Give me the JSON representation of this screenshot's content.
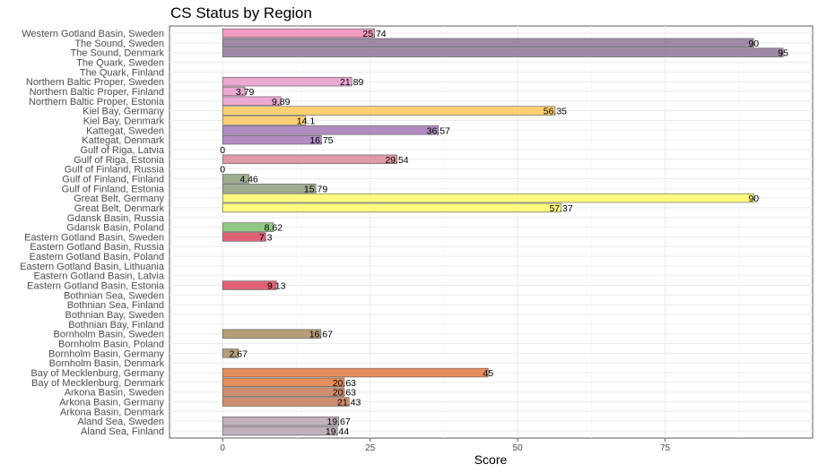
{
  "chart_data": {
    "type": "bar",
    "orientation": "horizontal",
    "title": "CS Status by Region",
    "xlabel": "Score",
    "ylabel": "",
    "xlim": [
      -9,
      100
    ],
    "xticks": [
      0,
      25,
      50,
      75
    ],
    "grid": true,
    "legend": "none",
    "categories": [
      {
        "name": "Western Gotland Basin, Sweden",
        "value": 25.74,
        "label": "25.74",
        "color": "#f08bb4"
      },
      {
        "name": "The Sound, Sweden",
        "value": 90,
        "label": "90",
        "color": "#8e7596"
      },
      {
        "name": "The Sound, Denmark",
        "value": 95,
        "label": "95",
        "color": "#8e7596"
      },
      {
        "name": "The Quark, Sweden",
        "value": null,
        "label": "",
        "color": "#cccccc"
      },
      {
        "name": "The Quark, Finland",
        "value": null,
        "label": "",
        "color": "#cccccc"
      },
      {
        "name": "Northern Baltic Proper, Sweden",
        "value": 21.89,
        "label": "21.89",
        "color": "#e89acb"
      },
      {
        "name": "Northern Baltic Proper, Finland",
        "value": 3.79,
        "label": "3.79",
        "color": "#e89acb"
      },
      {
        "name": "Northern Baltic Proper, Estonia",
        "value": 9.89,
        "label": "9.89",
        "color": "#e89acb"
      },
      {
        "name": "Kiel Bay, Germany",
        "value": 56.35,
        "label": "56.35",
        "color": "#fdc95a"
      },
      {
        "name": "Kiel Bay, Denmark",
        "value": 14.1,
        "label": "14.1",
        "color": "#fdc95a"
      },
      {
        "name": "Kattegat, Sweden",
        "value": 36.57,
        "label": "36.57",
        "color": "#a478b9"
      },
      {
        "name": "Kattegat, Denmark",
        "value": 16.75,
        "label": "16.75",
        "color": "#a478b9"
      },
      {
        "name": "Gulf of Riga, Latvia",
        "value": 0,
        "label": "0",
        "color": "#d98898"
      },
      {
        "name": "Gulf of Riga, Estonia",
        "value": 29.54,
        "label": "29.54",
        "color": "#d98898"
      },
      {
        "name": "Gulf of Finland, Russia",
        "value": 0,
        "label": "0",
        "color": "#8d9f7a"
      },
      {
        "name": "Gulf of Finland, Finland",
        "value": 4.46,
        "label": "4.46",
        "color": "#8d9f7a"
      },
      {
        "name": "Gulf of Finland, Estonia",
        "value": 15.79,
        "label": "15.79",
        "color": "#8d9f7a"
      },
      {
        "name": "Great Belt, Germany",
        "value": 90,
        "label": "90",
        "color": "#fffa6a"
      },
      {
        "name": "Great Belt, Denmark",
        "value": 57.37,
        "label": "57.37",
        "color": "#fffa6a"
      },
      {
        "name": "Gdansk Basin, Russia",
        "value": null,
        "label": "",
        "color": "#cccccc"
      },
      {
        "name": "Gdansk Basin, Poland",
        "value": 8.62,
        "label": "8.62",
        "color": "#7fc06e"
      },
      {
        "name": "Eastern Gotland Basin, Sweden",
        "value": 7.3,
        "label": "7.3",
        "color": "#d9475f"
      },
      {
        "name": "Eastern Gotland Basin, Russia",
        "value": null,
        "label": "",
        "color": "#cccccc"
      },
      {
        "name": "Eastern Gotland Basin, Poland",
        "value": null,
        "label": "",
        "color": "#cccccc"
      },
      {
        "name": "Eastern Gotland Basin, Lithuania",
        "value": null,
        "label": "",
        "color": "#cccccc"
      },
      {
        "name": "Eastern Gotland Basin, Latvia",
        "value": null,
        "label": "",
        "color": "#cccccc"
      },
      {
        "name": "Eastern Gotland Basin, Estonia",
        "value": 9.13,
        "label": "9.13",
        "color": "#d9475f"
      },
      {
        "name": "Bothnian Sea, Sweden",
        "value": null,
        "label": "",
        "color": "#cccccc"
      },
      {
        "name": "Bothnian Sea, Finland",
        "value": null,
        "label": "",
        "color": "#cccccc"
      },
      {
        "name": "Bothnian Bay, Sweden",
        "value": null,
        "label": "",
        "color": "#cccccc"
      },
      {
        "name": "Bothnian Bay, Finland",
        "value": null,
        "label": "",
        "color": "#cccccc"
      },
      {
        "name": "Bornholm Basin, Sweden",
        "value": 16.67,
        "label": "16.67",
        "color": "#a88e62"
      },
      {
        "name": "Bornholm Basin, Poland",
        "value": null,
        "label": "",
        "color": "#cccccc"
      },
      {
        "name": "Bornholm Basin, Germany",
        "value": 2.67,
        "label": "2.67",
        "color": "#a88e62"
      },
      {
        "name": "Bornholm Basin, Denmark",
        "value": null,
        "label": "",
        "color": "#cccccc"
      },
      {
        "name": "Bay of Mecklenburg, Germany",
        "value": 45,
        "label": "45",
        "color": "#e07a42"
      },
      {
        "name": "Bay of Mecklenburg, Denmark",
        "value": 20.63,
        "label": "20.63",
        "color": "#e07a42"
      },
      {
        "name": "Arkona Basin, Sweden",
        "value": 20.63,
        "label": "20.63",
        "color": "#c47a56"
      },
      {
        "name": "Arkona Basin, Germany",
        "value": 21.43,
        "label": "21.43",
        "color": "#c47a56"
      },
      {
        "name": "Arkona Basin, Denmark",
        "value": null,
        "label": "",
        "color": "#cccccc"
      },
      {
        "name": "Aland Sea, Sweden",
        "value": 19.67,
        "label": "19.67",
        "color": "#b7a3b0"
      },
      {
        "name": "Aland Sea, Finland",
        "value": 19.44,
        "label": "19.44",
        "color": "#b7a3b0"
      }
    ]
  }
}
